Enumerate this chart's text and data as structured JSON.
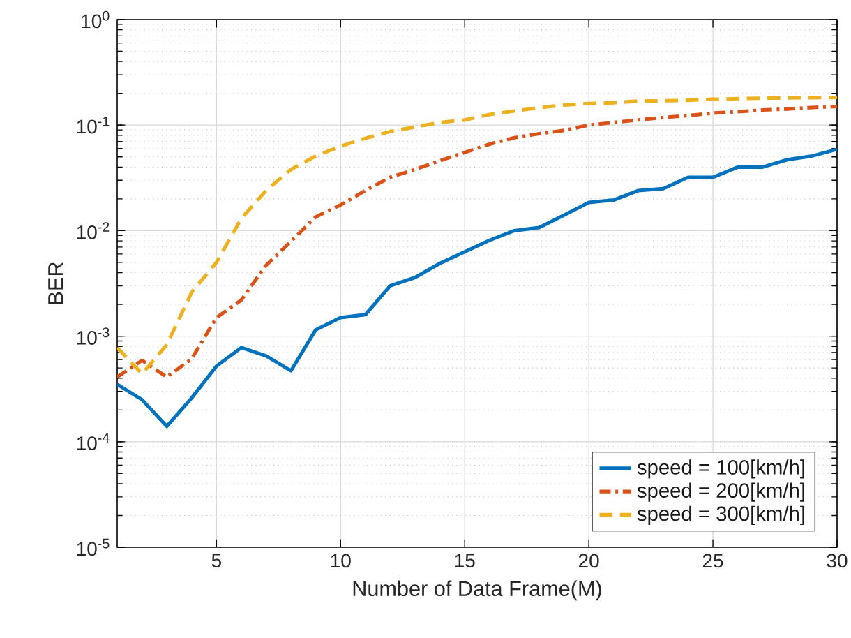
{
  "chart_data": {
    "type": "line",
    "xlabel": "Number of Data Frame(M)",
    "ylabel": "BER",
    "x": [
      1,
      2,
      3,
      4,
      5,
      6,
      7,
      8,
      9,
      10,
      11,
      12,
      13,
      14,
      15,
      16,
      17,
      18,
      19,
      20,
      21,
      22,
      23,
      24,
      25,
      26,
      27,
      28,
      29,
      30
    ],
    "series": [
      {
        "name": "speed = 100[km/h]",
        "color": "#0072bd",
        "line_style": "solid",
        "values": [
          0.00035,
          0.00025,
          0.00014,
          0.00026,
          0.00052,
          0.00078,
          0.00065,
          0.00047,
          0.00115,
          0.0015,
          0.0016,
          0.003,
          0.0036,
          0.0049,
          0.0063,
          0.0081,
          0.01,
          0.0107,
          0.014,
          0.0185,
          0.0195,
          0.024,
          0.025,
          0.032,
          0.032,
          0.04,
          0.04,
          0.047,
          0.051,
          0.059
        ]
      },
      {
        "name": "speed = 200[km/h]",
        "color": "#d95319",
        "line_style": "dashdot",
        "values": [
          0.00041,
          0.00059,
          0.00041,
          0.00061,
          0.0015,
          0.0022,
          0.0047,
          0.0079,
          0.0135,
          0.0175,
          0.024,
          0.032,
          0.038,
          0.046,
          0.055,
          0.066,
          0.076,
          0.083,
          0.089,
          0.1,
          0.106,
          0.112,
          0.118,
          0.123,
          0.13,
          0.134,
          0.139,
          0.142,
          0.147,
          0.15
        ]
      },
      {
        "name": "speed = 300[km/h]",
        "color": "#edb120",
        "line_style": "dashed",
        "values": [
          0.00078,
          0.00044,
          0.00083,
          0.0026,
          0.005,
          0.013,
          0.024,
          0.038,
          0.051,
          0.063,
          0.075,
          0.087,
          0.096,
          0.106,
          0.112,
          0.126,
          0.136,
          0.146,
          0.155,
          0.16,
          0.163,
          0.169,
          0.17,
          0.172,
          0.176,
          0.178,
          0.18,
          0.181,
          0.182,
          0.183
        ]
      }
    ],
    "xlim": [
      1,
      30
    ],
    "xticks": [
      5,
      10,
      15,
      20,
      25,
      30
    ],
    "ylim": [
      1e-05,
      1
    ],
    "yticks": [
      {
        "value": 1e-05,
        "label": "10$^{-5}$"
      },
      {
        "value": 0.0001,
        "label": "10$^{-4}$"
      },
      {
        "value": 0.001,
        "label": "10$^{-3}$"
      },
      {
        "value": 0.01,
        "label": "10$^{-2}$"
      },
      {
        "value": 0.1,
        "label": "10$^{-1}$"
      },
      {
        "value": 1,
        "label": "10$^{0}$"
      }
    ],
    "log": "y",
    "grid": true,
    "legend": "bottom right"
  }
}
